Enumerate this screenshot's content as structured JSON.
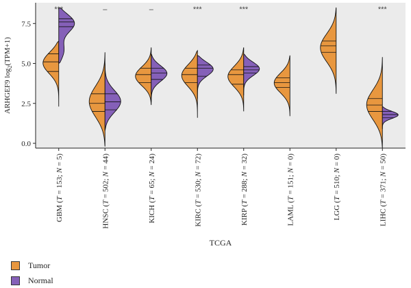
{
  "chart_data": {
    "type": "violin",
    "title": "",
    "xlabel": "TCGA",
    "ylabel": "ARHGEF9 log2(TPM+1)",
    "ylim": [
      -0.3,
      8.8
    ],
    "y_ticks": [
      "0.0",
      "2.5",
      "5.0",
      "7.5"
    ],
    "y_tick_values": [
      0,
      2.5,
      5,
      7.5
    ],
    "grid": false,
    "legend_position": "bottom-left",
    "colors": {
      "Tumor": "#E8973F",
      "Normal": "#8560B8",
      "background": "#EBEBEB"
    },
    "categories": [
      "GBM (T = 153; N = 5)",
      "HNSC (T = 502; N = 44)",
      "KICH (T = 65; N = 24)",
      "KIRC (T = 530; N = 72)",
      "KIRP (T = 288; N = 32)",
      "LAML (T = 151; N = 0)",
      "LGG (T = 510; N = 0)",
      "LIHC (T = 371; N = 50)"
    ],
    "significance": [
      "***",
      "–",
      "–",
      "***",
      "***",
      "",
      "",
      "***"
    ],
    "series": [
      {
        "name": "Tumor",
        "violins": [
          {
            "min": 2.3,
            "max": 6.4,
            "q1": 4.5,
            "median": 5.1,
            "q3": 5.6,
            "peaks": [
              [
                5.1,
                1.0
              ]
            ]
          },
          {
            "min": -0.2,
            "max": 5.7,
            "q1": 2.0,
            "median": 2.5,
            "q3": 3.1,
            "peaks": [
              [
                2.6,
                1.0
              ]
            ]
          },
          {
            "min": 2.4,
            "max": 6.0,
            "q1": 3.8,
            "median": 4.3,
            "q3": 4.7,
            "peaks": [
              [
                4.2,
                1.0
              ]
            ]
          },
          {
            "min": 1.6,
            "max": 5.8,
            "q1": 3.8,
            "median": 4.3,
            "q3": 4.7,
            "peaks": [
              [
                4.3,
                1.0
              ]
            ]
          },
          {
            "min": 2.0,
            "max": 6.0,
            "q1": 3.7,
            "median": 4.3,
            "q3": 4.6,
            "peaks": [
              [
                4.2,
                1.0
              ]
            ]
          },
          {
            "min": 1.7,
            "max": 5.5,
            "q1": 3.5,
            "median": 3.8,
            "q3": 4.1,
            "peaks": [
              [
                3.8,
                1.0
              ]
            ]
          },
          {
            "min": 3.1,
            "max": 8.5,
            "q1": 5.7,
            "median": 6.1,
            "q3": 6.4,
            "peaks": [
              [
                6.0,
                1.0
              ]
            ]
          },
          {
            "min": -0.3,
            "max": 5.4,
            "q1": 2.0,
            "median": 2.4,
            "q3": 2.8,
            "peaks": [
              [
                2.4,
                1.0
              ]
            ]
          }
        ]
      },
      {
        "name": "Normal",
        "violins": [
          {
            "min": 5.0,
            "max": 8.5,
            "q1": 7.3,
            "median": 7.6,
            "q3": 7.8,
            "peaks": [
              [
                7.6,
                1.0
              ],
              [
                5.7,
                0.35
              ]
            ]
          },
          {
            "min": 0.8,
            "max": 5.0,
            "q1": 2.1,
            "median": 2.6,
            "q3": 3.1,
            "peaks": [
              [
                2.6,
                1.0
              ]
            ]
          },
          {
            "min": 2.6,
            "max": 5.6,
            "q1": 4.0,
            "median": 4.4,
            "q3": 4.7,
            "peaks": [
              [
                4.4,
                1.0
              ]
            ]
          },
          {
            "min": 2.8,
            "max": 5.5,
            "q1": 4.2,
            "median": 4.7,
            "q3": 4.9,
            "peaks": [
              [
                4.7,
                1.0
              ]
            ]
          },
          {
            "min": 3.0,
            "max": 5.6,
            "q1": 4.4,
            "median": 4.6,
            "q3": 4.8,
            "peaks": [
              [
                4.7,
                1.0
              ]
            ]
          },
          null,
          null,
          {
            "min": 0.9,
            "max": 2.3,
            "q1": 1.6,
            "median": 1.8,
            "q3": 2.0,
            "peaks": [
              [
                1.8,
                1.0
              ]
            ]
          }
        ]
      }
    ]
  },
  "legend": {
    "tumor_label": "Tumor",
    "normal_label": "Normal"
  }
}
